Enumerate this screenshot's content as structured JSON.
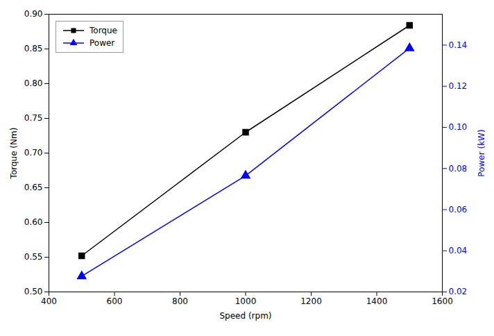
{
  "chart_data": {
    "type": "line",
    "x": [
      500,
      1000,
      1500
    ],
    "xlabel": "Speed (rpm)",
    "ylabel": "Torque (Nm)",
    "y2label": "Power (kW)",
    "xlim": [
      400,
      1600
    ],
    "xticks": [
      400,
      600,
      800,
      1000,
      1200,
      1400,
      1600
    ],
    "ylim": [
      0.5,
      0.9
    ],
    "yticks": [
      {
        "value": 0.5,
        "label": "0.50"
      },
      0.55,
      {
        "value": 0.6,
        "label": "0.60"
      },
      0.65,
      {
        "value": 0.7,
        "label": "0.70"
      },
      0.75,
      {
        "value": 0.8,
        "label": "0.80"
      },
      0.85,
      {
        "value": 0.9,
        "label": "0.90"
      }
    ],
    "y2lim": [
      0.02,
      0.155
    ],
    "y2ticks": [
      0.02,
      0.04,
      0.06,
      0.08,
      {
        "value": 0.1,
        "label": "0.10"
      },
      0.12,
      0.14
    ],
    "legend": "upper left",
    "series": [
      {
        "name": "Torque",
        "color": "#000000",
        "marker": "square",
        "line_style": "solid",
        "values": [
          0.552,
          0.73,
          0.884
        ]
      },
      {
        "name": "Power",
        "color": "#0000FF",
        "marker": "triangle",
        "line_style": "solid",
        "axis": "y2",
        "values": [
          0.0276,
          0.0765,
          0.1385
        ]
      }
    ]
  }
}
